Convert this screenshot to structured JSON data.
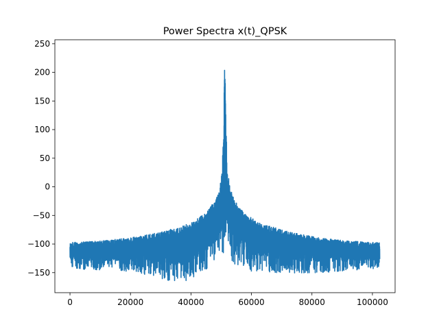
{
  "chart_data": {
    "type": "line",
    "title": "Power Spectra x(t)_QPSK",
    "xlabel": "",
    "ylabel": "",
    "xlim": [
      -5000,
      107500
    ],
    "ylim": [
      -185,
      257
    ],
    "x_ticks": [
      0,
      20000,
      40000,
      60000,
      80000,
      100000
    ],
    "x_tick_labels": [
      "0",
      "20000",
      "40000",
      "60000",
      "80000",
      "100000"
    ],
    "y_ticks": [
      -150,
      -100,
      -50,
      0,
      50,
      100,
      150,
      200,
      250
    ],
    "y_tick_labels": [
      "−150",
      "−100",
      "−50",
      "0",
      "50",
      "100",
      "150",
      "200",
      "250"
    ],
    "grid": false,
    "colors": {
      "line": "#1f77b4",
      "axes": "#000000",
      "background": "#ffffff"
    },
    "series": [
      {
        "x_range": [
          0,
          102400
        ],
        "center": 51200,
        "peak": 233,
        "upper_envelope": [
          [
            0,
            -95
          ],
          [
            10000,
            -92
          ],
          [
            20000,
            -86
          ],
          [
            30000,
            -75
          ],
          [
            40000,
            -58
          ],
          [
            45000,
            -40
          ],
          [
            48000,
            -18
          ],
          [
            49500,
            5
          ],
          [
            50300,
            40
          ],
          [
            50700,
            100
          ],
          [
            50900,
            150
          ],
          [
            51000,
            215
          ],
          [
            51200,
            233
          ],
          [
            51400,
            215
          ],
          [
            51500,
            150
          ],
          [
            51700,
            100
          ],
          [
            52100,
            40
          ],
          [
            52900,
            5
          ],
          [
            54400,
            -18
          ],
          [
            57400,
            -40
          ],
          [
            62400,
            -58
          ],
          [
            72400,
            -75
          ],
          [
            82400,
            -86
          ],
          [
            92400,
            -92
          ],
          [
            102400,
            -95
          ]
        ],
        "lower_envelope": [
          [
            0,
            -143
          ],
          [
            20000,
            -148
          ],
          [
            28000,
            -158
          ],
          [
            37000,
            -170
          ],
          [
            45000,
            -145
          ],
          [
            50500,
            -120
          ],
          [
            51200,
            -120
          ],
          [
            52000,
            -130
          ],
          [
            60000,
            -148
          ],
          [
            75000,
            -152
          ],
          [
            90000,
            -148
          ],
          [
            102400,
            -143
          ]
        ]
      }
    ]
  }
}
